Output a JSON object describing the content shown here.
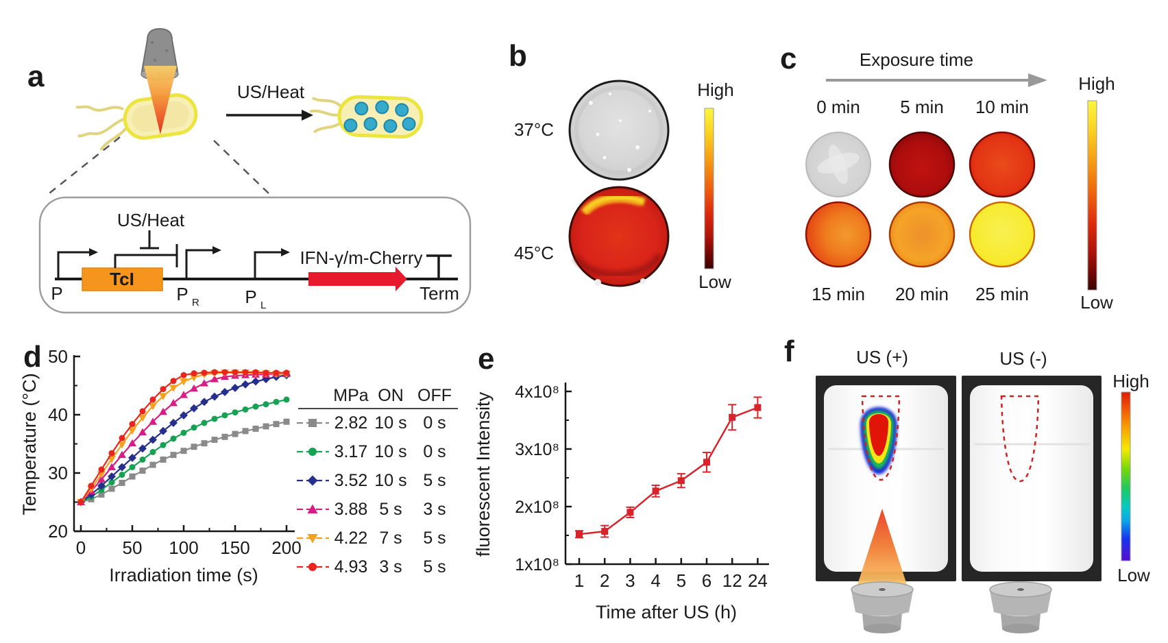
{
  "panels": {
    "a": {
      "label": "a",
      "arrow_label": "US/Heat",
      "circuit": {
        "inhibitor": "US/Heat",
        "p": "P",
        "tci": "TcI",
        "pr_main": "P",
        "pr_sub": "R",
        "pl_main": "P",
        "pl_sub": "L",
        "gene": "IFN-γ/m-Cherry",
        "term": "Term"
      }
    },
    "b": {
      "label": "b",
      "temps": [
        "37°C",
        "45°C"
      ],
      "colorbar_high": "High",
      "colorbar_low": "Low"
    },
    "c": {
      "label": "c",
      "title": "Exposure time",
      "top_times": [
        "0 min",
        "5 min",
        "10 min"
      ],
      "bottom_times": [
        "15 min",
        "20 min",
        "25 min"
      ],
      "colorbar_high": "High",
      "colorbar_low": "Low"
    },
    "d": {
      "label": "d"
    },
    "e": {
      "label": "e"
    },
    "f": {
      "label": "f",
      "left": "US (+)",
      "right": "US (-)",
      "colorbar_high": "High",
      "colorbar_low": "Low"
    }
  },
  "chart_data": [
    {
      "id": "d",
      "type": "line",
      "xlabel": "Irradiation time (s)",
      "ylabel": "Temperature (°C)",
      "xlim": [
        0,
        200
      ],
      "ylim": [
        20,
        50
      ],
      "xticks": [
        0,
        50,
        100,
        150,
        200
      ],
      "yticks": [
        20,
        30,
        40,
        50
      ],
      "x_start": 0,
      "x_step": 10,
      "grid": false,
      "legend": {
        "headers": [
          "MPa",
          "ON",
          "OFF"
        ],
        "position": "right"
      },
      "series": [
        {
          "mpa": "2.82",
          "on": "10 s",
          "off": "0 s",
          "marker": "square",
          "color": "#8a8a8a",
          "values": [
            25,
            25.5,
            26.3,
            27.3,
            28.3,
            29.4,
            30.4,
            31.4,
            32.3,
            33.1,
            33.8,
            34.5,
            35.1,
            35.7,
            36.2,
            36.7,
            37.2,
            37.6,
            38,
            38.4,
            38.8
          ]
        },
        {
          "mpa": "3.17",
          "on": "10 s",
          "off": "0 s",
          "marker": "circle",
          "color": "#17a253",
          "values": [
            25,
            25.9,
            27.1,
            28.4,
            29.7,
            31,
            32.3,
            33.6,
            34.8,
            35.9,
            36.9,
            37.8,
            38.6,
            39.3,
            39.9,
            40.4,
            40.9,
            41.4,
            41.8,
            42.2,
            42.6
          ]
        },
        {
          "mpa": "3.52",
          "on": "10 s",
          "off": "5 s",
          "marker": "diamond",
          "color": "#26308c",
          "values": [
            25,
            26.3,
            27.8,
            29.4,
            31,
            32.6,
            34.2,
            35.7,
            37.2,
            38.6,
            39.9,
            41.1,
            42.2,
            43.1,
            43.9,
            44.6,
            45.2,
            45.7,
            46.1,
            46.5,
            46.8
          ]
        },
        {
          "mpa": "3.88",
          "on": "5 s",
          "off": "3 s",
          "marker": "triangle-up",
          "color": "#d81e84",
          "values": [
            25,
            26.9,
            28.9,
            31,
            33.1,
            35.1,
            37,
            38.8,
            40.5,
            42,
            43.4,
            44.5,
            45.4,
            46.1,
            46.5,
            46.7,
            46.8,
            46.9,
            46.9,
            47,
            47
          ]
        },
        {
          "mpa": "4.22",
          "on": "7 s",
          "off": "5 s",
          "marker": "triangle-down",
          "color": "#f5a11d",
          "values": [
            25,
            27.3,
            29.8,
            32.4,
            34.9,
            37.3,
            39.5,
            41.5,
            43.2,
            44.6,
            45.7,
            46.4,
            46.9,
            47.1,
            47.2,
            47.2,
            47.2,
            47.1,
            47.1,
            47,
            47
          ]
        },
        {
          "mpa": "4.93",
          "on": "3 s",
          "off": "5 s",
          "marker": "circle",
          "color": "#e8251f",
          "values": [
            25,
            27.8,
            30.6,
            33.4,
            36,
            38.4,
            40.6,
            42.6,
            44.4,
            45.8,
            46.8,
            47.1,
            47.2,
            47.3,
            47.3,
            47.3,
            47.3,
            47.3,
            47.2,
            47.2,
            47.2
          ]
        }
      ]
    },
    {
      "id": "e",
      "type": "line",
      "xlabel": "Time after US (h)",
      "ylabel": "fluorescent Intensity",
      "categories": [
        "1",
        "2",
        "3",
        "4",
        "5",
        "6",
        "12",
        "24"
      ],
      "ytick_labels": [
        "1x10⁸",
        "2x10⁸",
        "3x10⁸",
        "4x10⁸"
      ],
      "ylim": [
        100000000,
        400000000
      ],
      "values": [
        152000000,
        157000000,
        190000000,
        227000000,
        245000000,
        277000000,
        355000000,
        372000000
      ],
      "errors": [
        6000000,
        10000000,
        9000000,
        10000000,
        12000000,
        17000000,
        22000000,
        18000000
      ],
      "marker": "square",
      "color": "#d8232a",
      "grid": false
    }
  ],
  "colors": {
    "thermal_colorbar_top_to_bottom": [
      "#fdf63e",
      "#f59d13",
      "#e23b10",
      "#ae130a",
      "#380402"
    ],
    "rainbow_colorbar_top_to_bottom": [
      "#dd1c04",
      "#f9a700",
      "#f4ea02",
      "#1fc95f",
      "#06c9c3",
      "#1634ee",
      "#5a0dd0"
    ],
    "tci_box": "#f6951d",
    "gene_arrow": "#e8192c",
    "bacterium_fill": "#f7efb4",
    "bacterium_outline": "#ece43f",
    "expression_dots": "#35aacb",
    "dish_37": "#d6d6d6",
    "dish_45": "#d8231a"
  }
}
